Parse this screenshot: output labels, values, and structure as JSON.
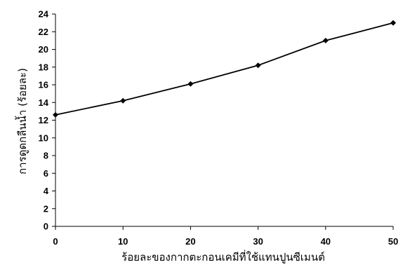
{
  "chart_data": {
    "type": "line",
    "xlabel": "ร้อยละของกากตะกอนเคมีที่ใช้แทนปูนซีเมนต์",
    "ylabel": "การดูดกลืนน้ำ (ร้อยละ)",
    "x": [
      0,
      10,
      20,
      30,
      40,
      50
    ],
    "series": [
      {
        "values": [
          12.6,
          14.2,
          16.1,
          18.2,
          21.0,
          23.0
        ]
      }
    ],
    "xlim": [
      0,
      50
    ],
    "ylim": [
      0,
      24
    ],
    "xticks": [
      "0",
      "10",
      "20",
      "30",
      "40",
      "50"
    ],
    "yticks": [
      "0",
      "2",
      "4",
      "6",
      "8",
      "10",
      "12",
      "14",
      "16",
      "18",
      "20",
      "22",
      "24"
    ],
    "grid": false,
    "marker": "diamond",
    "colors": {
      "line": "#000000",
      "marker": "#000000",
      "axis": "#000000"
    }
  }
}
